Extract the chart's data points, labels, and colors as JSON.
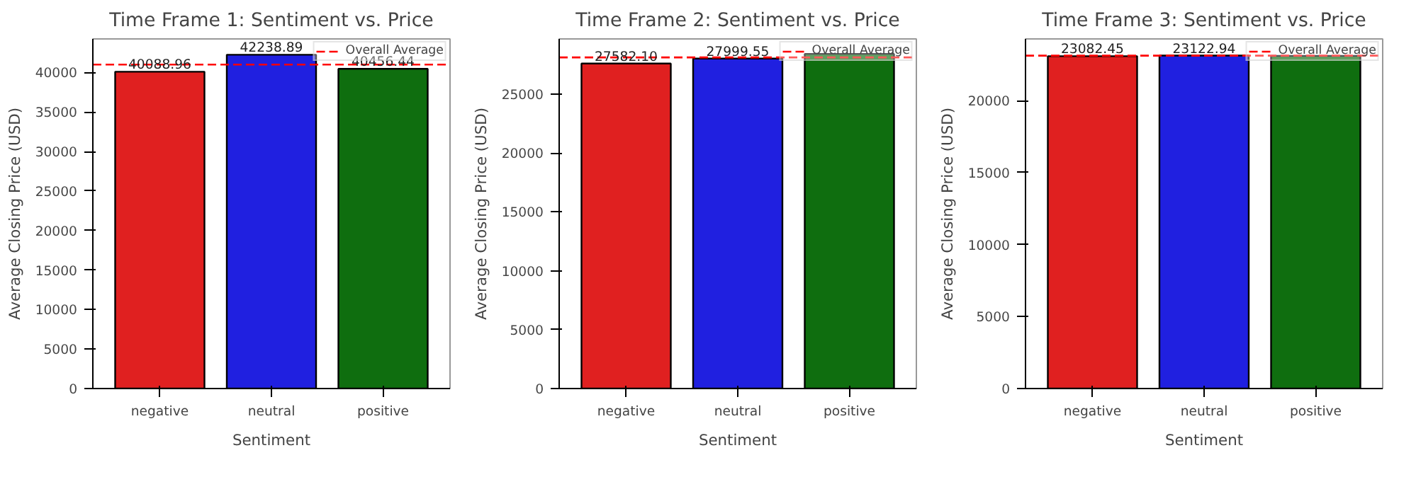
{
  "chart_data": [
    {
      "type": "bar",
      "title": "Time Frame 1: Sentiment vs. Price",
      "xlabel": "Sentiment",
      "ylabel": "Average Closing Price (USD)",
      "categories": [
        "negative",
        "neutral",
        "positive"
      ],
      "values": [
        40088.96,
        42238.89,
        40456.44
      ],
      "colors": [
        "#e02020",
        "#2020e0",
        "#0f6e0f"
      ],
      "value_labels": [
        "40088.96",
        "42238.89",
        "40456.44"
      ],
      "ylim": [
        0,
        44240
      ],
      "yticks": [
        0,
        5000,
        10000,
        15000,
        20000,
        25000,
        30000,
        35000,
        40000
      ],
      "ref_lines": [
        {
          "axis": "y",
          "value": 41000,
          "label": "Overall Average",
          "color": "#ff0000",
          "line_style": "dashed"
        }
      ],
      "legend": "top right",
      "grid": false
    },
    {
      "type": "bar",
      "title": "Time Frame 2: Sentiment vs. Price",
      "xlabel": "Sentiment",
      "ylabel": "Average Closing Price (USD)",
      "categories": [
        "negative",
        "neutral",
        "positive"
      ],
      "values": [
        27582.1,
        27999.55,
        28400
      ],
      "colors": [
        "#e02020",
        "#2020e0",
        "#0f6e0f"
      ],
      "value_labels": [
        "27582.10",
        "27999.55",
        null
      ],
      "ylim": [
        0,
        29670
      ],
      "yticks": [
        0,
        5000,
        10000,
        15000,
        20000,
        25000
      ],
      "ref_lines": [
        {
          "axis": "y",
          "value": 28100,
          "label": "Overall Average",
          "color": "#ff0000",
          "line_style": "dashed"
        }
      ],
      "legend": "top right",
      "grid": false
    },
    {
      "type": "bar",
      "title": "Time Frame 3: Sentiment vs. Price",
      "xlabel": "Sentiment",
      "ylabel": "Average Closing Price (USD)",
      "categories": [
        "negative",
        "neutral",
        "positive"
      ],
      "values": [
        23082.45,
        23122.94,
        23100
      ],
      "colors": [
        "#e02020",
        "#2020e0",
        "#0f6e0f"
      ],
      "value_labels": [
        "23082.45",
        "23122.94",
        null
      ],
      "ylim": [
        0,
        24280
      ],
      "yticks": [
        0,
        5000,
        10000,
        15000,
        20000
      ],
      "ref_lines": [
        {
          "axis": "y",
          "value": 23120,
          "label": "Overall Average",
          "color": "#ff0000",
          "line_style": "dashed"
        }
      ],
      "legend": "top right",
      "grid": false
    }
  ]
}
